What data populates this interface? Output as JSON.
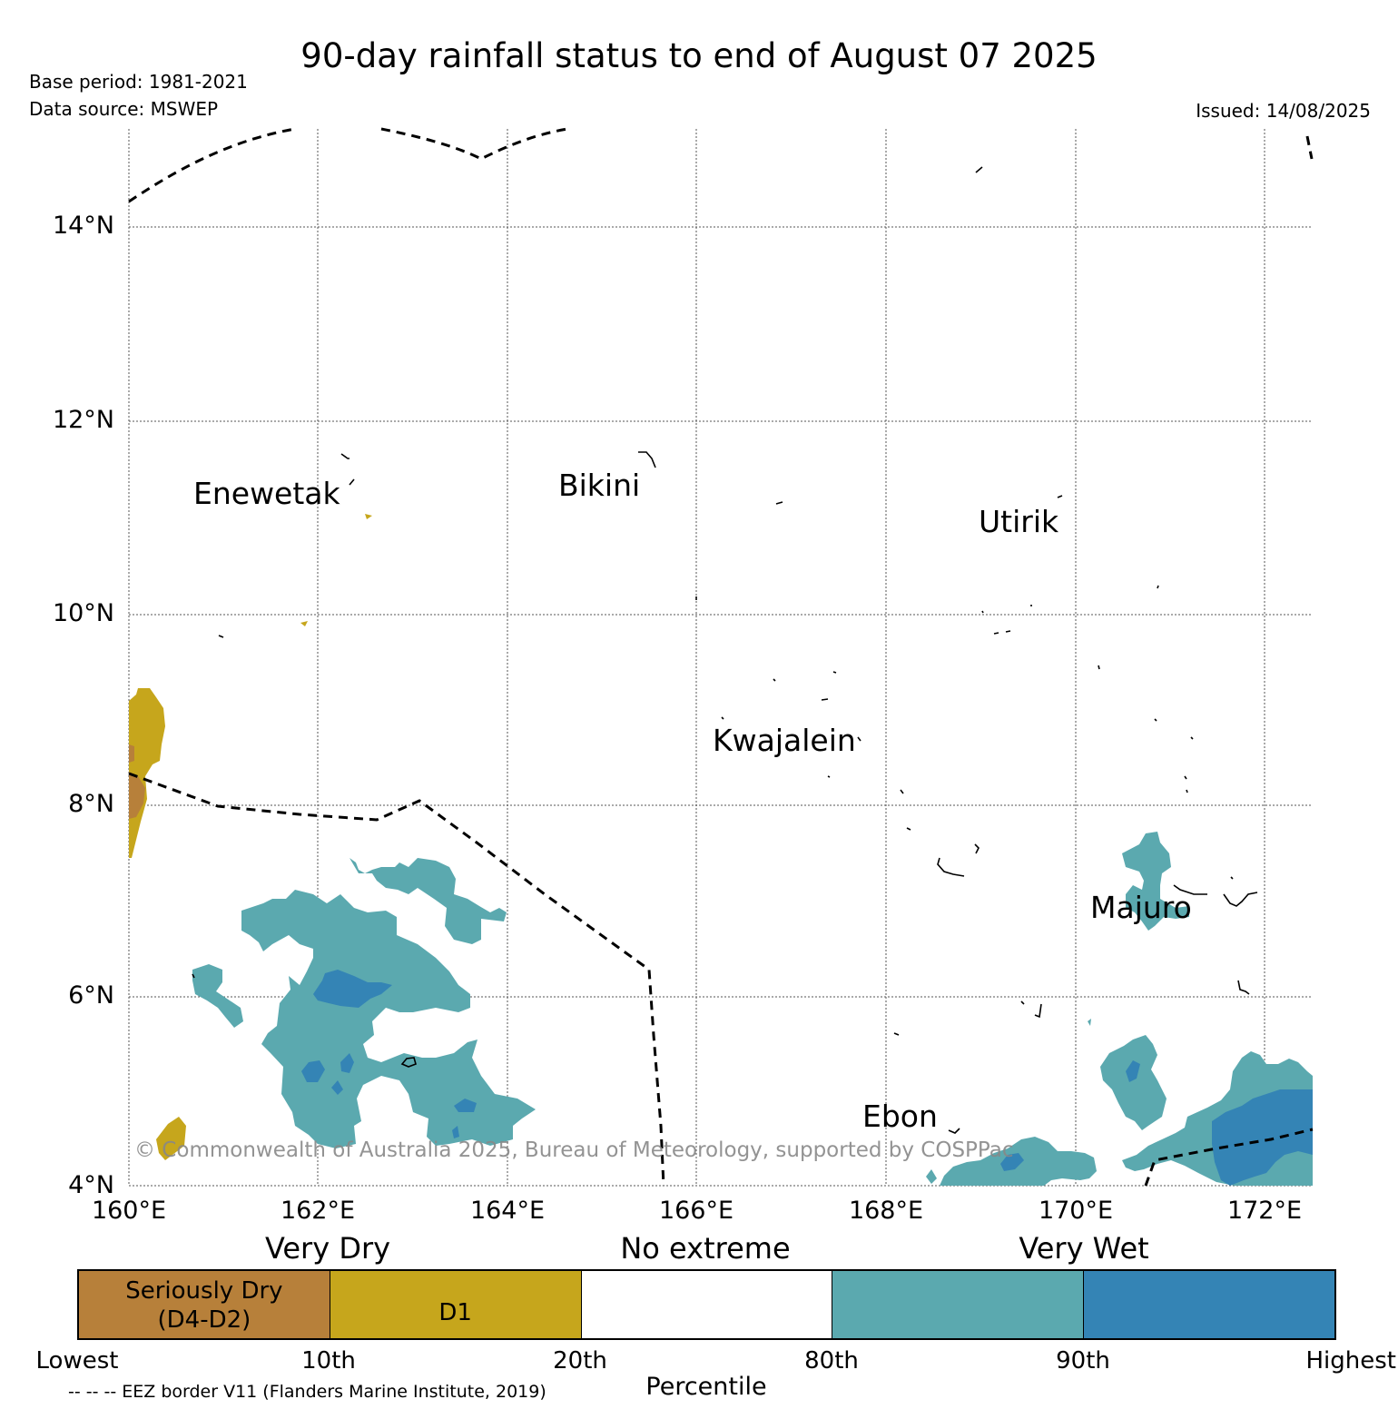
{
  "header": {
    "title": "90-day rainfall status to end of August 07 2025",
    "base_period": "Base period: 1981-2021",
    "data_source": "Data source: MSWEP",
    "issued": "Issued: 14/08/2025"
  },
  "map": {
    "lat_labels": [
      "14°N",
      "12°N",
      "10°N",
      "8°N",
      "6°N",
      "4°N"
    ],
    "lon_labels": [
      "160°E",
      "162°E",
      "164°E",
      "166°E",
      "168°E",
      "170°E",
      "172°E"
    ],
    "places": [
      "Enewetak",
      "Bikini",
      "Utirik",
      "Kwajalein",
      "Majuro",
      "Ebon"
    ],
    "copyright": "© Commonwealth of Australia 2025, Bureau of Meteorology, supported by COSPPac",
    "colors": {
      "seriously_dry": "#b7803a",
      "d1": "#c6a61c",
      "no_extreme": "#ffffff",
      "very_wet": "#5ba9af",
      "very_wet_high": "#3484b5"
    }
  },
  "legend": {
    "categories": [
      "Very Dry",
      "No extreme",
      "Very Wet"
    ],
    "segments": [
      {
        "label_line1": "Seriously Dry",
        "label_line2": "(D4-D2)",
        "color": "#b7803a"
      },
      {
        "label_line1": "",
        "label_line2": "D1",
        "color": "#c6a61c"
      },
      {
        "label_line1": "",
        "label_line2": "",
        "color": "#ffffff"
      },
      {
        "label_line1": "",
        "label_line2": "",
        "color": "#5ba9af"
      },
      {
        "label_line1": "",
        "label_line2": "",
        "color": "#3484b5"
      }
    ],
    "ticks": [
      "Lowest",
      "10th",
      "20th",
      "80th",
      "90th",
      "Highest"
    ],
    "axis_label": "Percentile",
    "eez_note": "-- -- -- EEZ border V11 (Flanders Marine Institute, 2019)"
  }
}
